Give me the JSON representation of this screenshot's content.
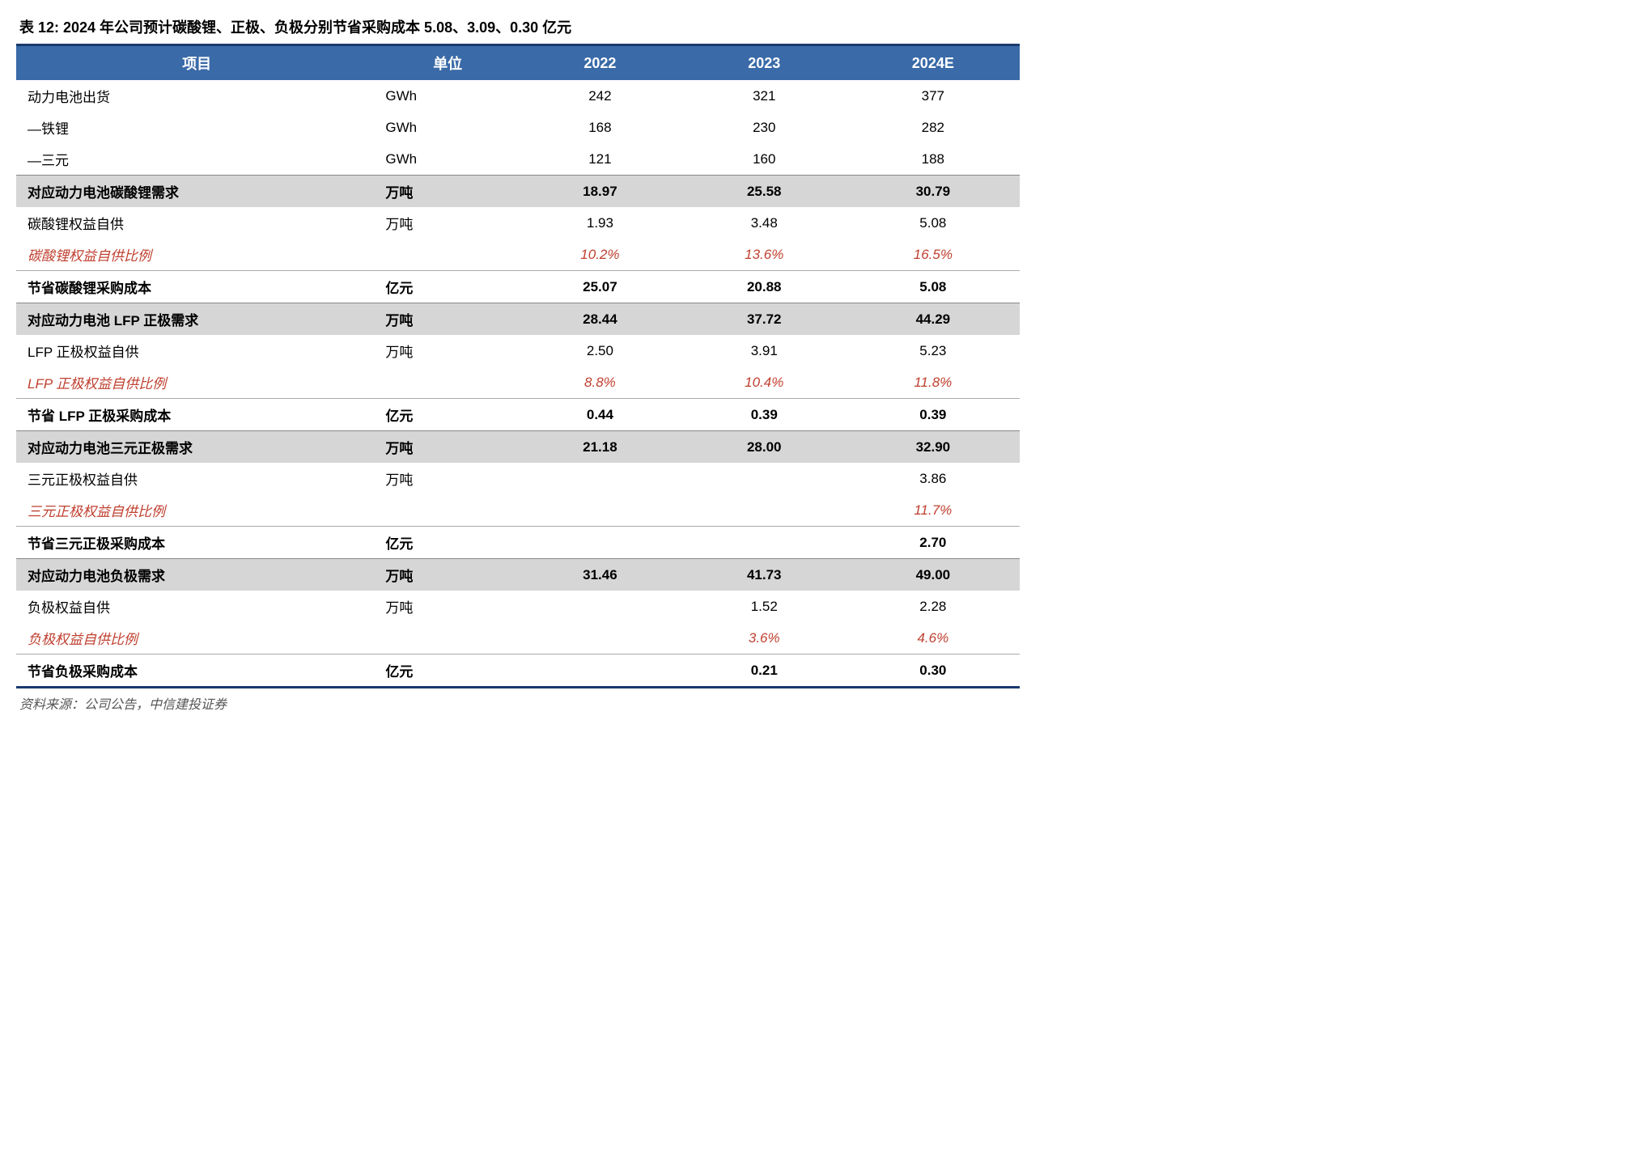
{
  "title": "表 12: 2024 年公司预计碳酸锂、正极、负极分别节省采购成本 5.08、3.09、0.30 亿元",
  "source": "资料来源：公司公告，中信建投证券",
  "colors": {
    "header_bg": "#3a6aa8",
    "header_text": "#ffffff",
    "section_bg": "#d6d6d6",
    "italic_red": "#c04030",
    "border_dark": "#1a3a6e"
  },
  "columns": [
    "项目",
    "单位",
    "2022",
    "2023",
    "2024E"
  ],
  "rows": [
    {
      "type": "normal",
      "cells": [
        "动力电池出货",
        "GWh",
        "242",
        "321",
        "377"
      ]
    },
    {
      "type": "normal",
      "cells": [
        "—铁锂",
        "GWh",
        "168",
        "230",
        "282"
      ]
    },
    {
      "type": "normal",
      "cells": [
        "—三元",
        "GWh",
        "121",
        "160",
        "188"
      ]
    },
    {
      "type": "section",
      "cells": [
        "对应动力电池碳酸锂需求",
        "万吨",
        "18.97",
        "25.58",
        "30.79"
      ]
    },
    {
      "type": "normal",
      "cells": [
        "碳酸锂权益自供",
        "万吨",
        "1.93",
        "3.48",
        "5.08"
      ]
    },
    {
      "type": "italic",
      "cells": [
        "碳酸锂权益自供比例",
        "",
        "10.2%",
        "13.6%",
        "16.5%"
      ]
    },
    {
      "type": "bold",
      "cells": [
        "节省碳酸锂采购成本",
        "亿元",
        "25.07",
        "20.88",
        "5.08"
      ]
    },
    {
      "type": "section",
      "cells": [
        "对应动力电池 LFP 正极需求",
        "万吨",
        "28.44",
        "37.72",
        "44.29"
      ]
    },
    {
      "type": "normal",
      "cells": [
        "LFP 正极权益自供",
        "万吨",
        "2.50",
        "3.91",
        "5.23"
      ]
    },
    {
      "type": "italic",
      "cells": [
        "LFP 正极权益自供比例",
        "",
        "8.8%",
        "10.4%",
        "11.8%"
      ]
    },
    {
      "type": "bold",
      "cells": [
        "节省 LFP 正极采购成本",
        "亿元",
        "0.44",
        "0.39",
        "0.39"
      ]
    },
    {
      "type": "section",
      "cells": [
        "对应动力电池三元正极需求",
        "万吨",
        "21.18",
        "28.00",
        "32.90"
      ]
    },
    {
      "type": "normal",
      "cells": [
        "三元正极权益自供",
        "万吨",
        "",
        "",
        "3.86"
      ]
    },
    {
      "type": "italic",
      "cells": [
        "三元正极权益自供比例",
        "",
        "",
        "",
        "11.7%"
      ]
    },
    {
      "type": "bold",
      "cells": [
        "节省三元正极采购成本",
        "亿元",
        "",
        "",
        "2.70"
      ]
    },
    {
      "type": "section",
      "cells": [
        "对应动力电池负极需求",
        "万吨",
        "31.46",
        "41.73",
        "49.00"
      ]
    },
    {
      "type": "normal",
      "cells": [
        "负极权益自供",
        "万吨",
        "",
        "1.52",
        "2.28"
      ]
    },
    {
      "type": "italic",
      "cells": [
        "负极权益自供比例",
        "",
        "",
        "3.6%",
        "4.6%"
      ]
    },
    {
      "type": "bold",
      "cells": [
        "节省负极采购成本",
        "亿元",
        "",
        "0.21",
        "0.30"
      ]
    }
  ]
}
